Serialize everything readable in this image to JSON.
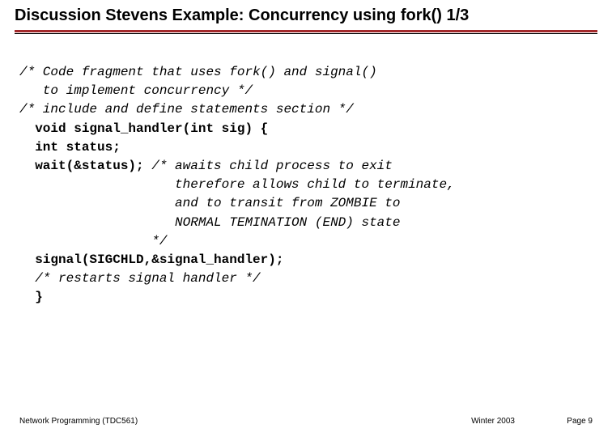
{
  "slide": {
    "title": "Discussion Stevens Example: Concurrency using fork()  1/3",
    "accent_color": "#a3292b",
    "code": {
      "l1": "/* Code fragment that uses fork() and signal()",
      "l2": "   to implement concurrency */",
      "l3": "/* include and define statements section */",
      "l4": "  void signal_handler(int sig) {",
      "l5": "  int status;",
      "l6a": "  wait(&status); ",
      "l6b": "/* awaits child process to exit",
      "l7": "                    therefore allows child to terminate,",
      "l8": "                    and to transit from ZOMBIE to",
      "l9": "                    NORMAL TEMINATION (END) state",
      "l10": "                 */",
      "l11": "  signal(SIGCHLD,&signal_handler);",
      "l12": "  /* restarts signal handler */",
      "l13": "  }"
    },
    "footer": {
      "left": "Network Programming (TDC561)",
      "mid": "Winter 2003",
      "right": "Page 9"
    }
  }
}
